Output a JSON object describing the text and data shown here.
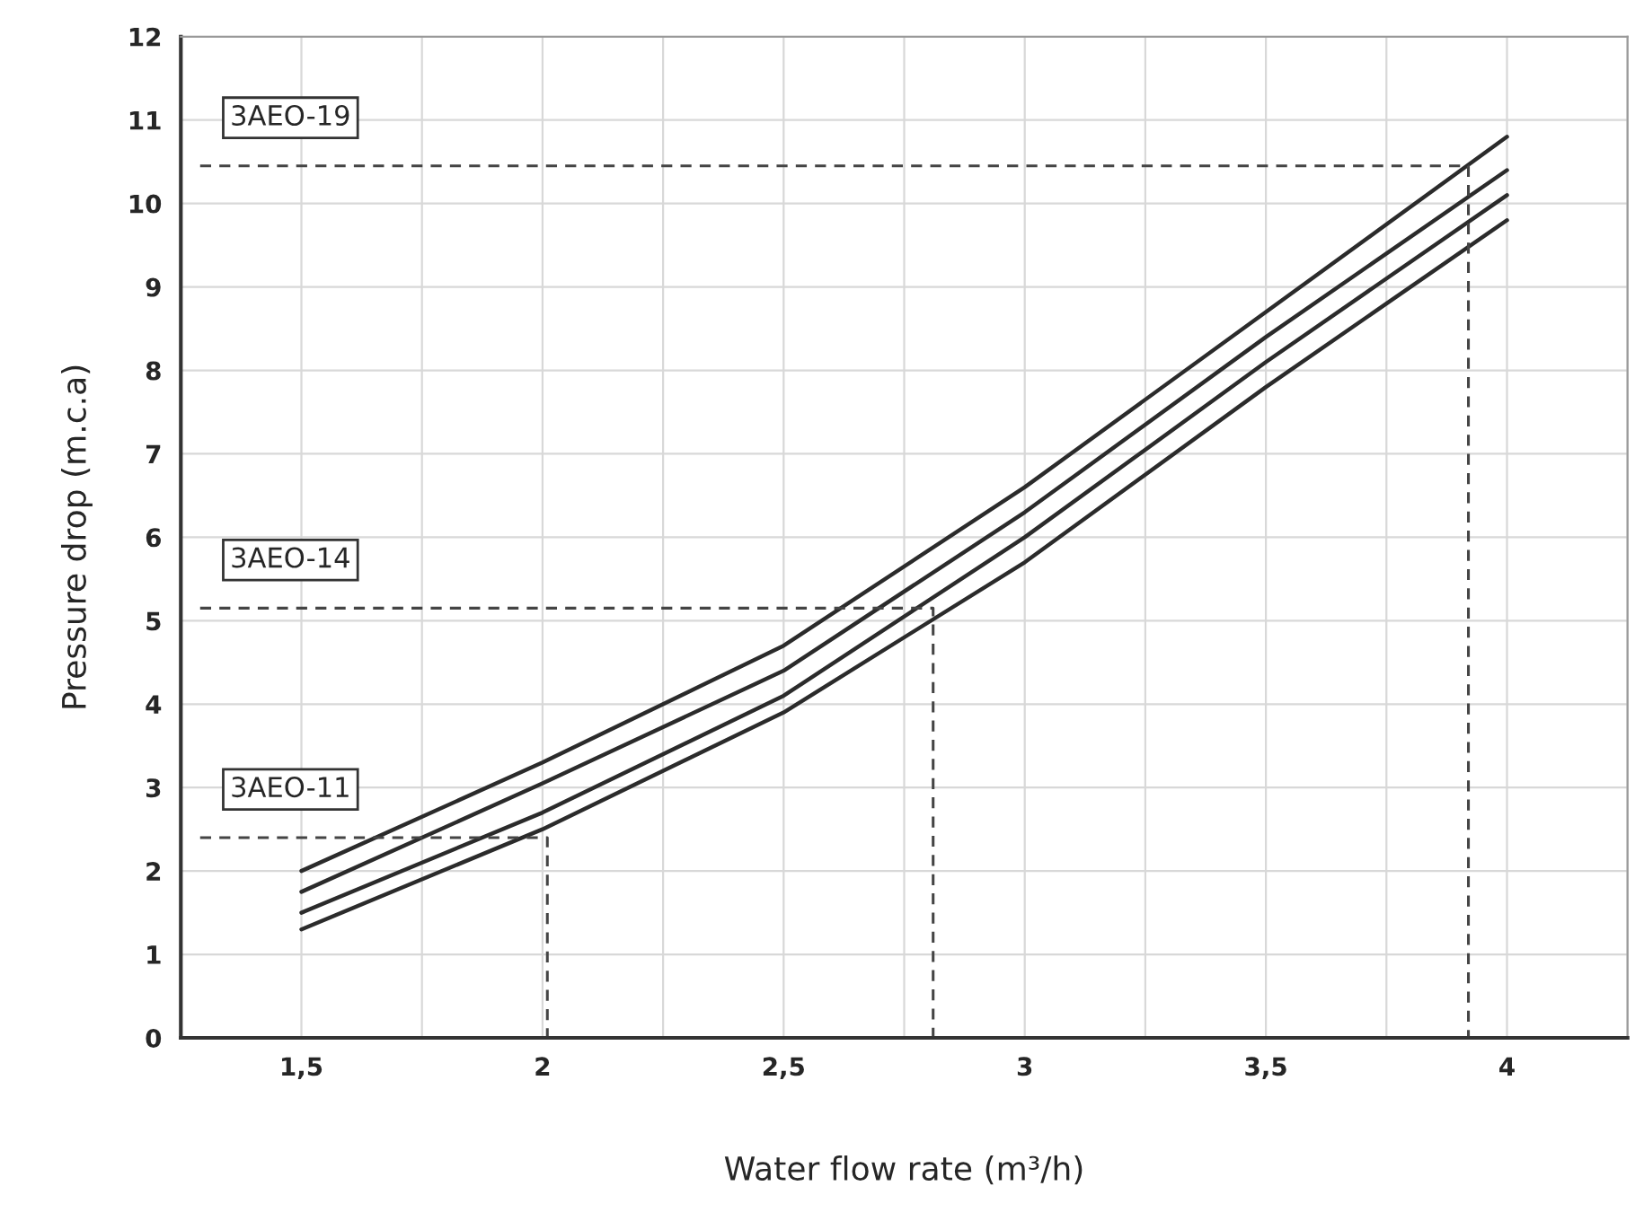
{
  "chart_data": {
    "type": "line",
    "xlabel": "Water flow rate (m³/h)",
    "ylabel": "Pressure drop (m.c.a)",
    "x": [
      1.5,
      2,
      2.5,
      3,
      3.5,
      4
    ],
    "series": [
      {
        "color": "#2b2b2b",
        "values": [
          2.0,
          3.3,
          4.7,
          6.6,
          8.7,
          10.8
        ]
      },
      {
        "color": "#2b2b2b",
        "values": [
          1.75,
          3.05,
          4.4,
          6.3,
          8.4,
          10.4
        ]
      },
      {
        "color": "#2b2b2b",
        "values": [
          1.5,
          2.7,
          4.1,
          6.0,
          8.1,
          10.1
        ]
      },
      {
        "color": "#2b2b2b",
        "values": [
          1.3,
          2.5,
          3.9,
          5.7,
          7.8,
          9.8
        ]
      },
      {
        "name": "3AEO-11",
        "color": "#444444",
        "line_style": "dashed",
        "x": [
          1.29,
          2.01,
          2.01
        ],
        "values": [
          2.4,
          2.4,
          0
        ]
      },
      {
        "name": "3AEO-14",
        "color": "#444444",
        "line_style": "dashed",
        "x": [
          1.29,
          2.81,
          2.81
        ],
        "values": [
          5.15,
          5.15,
          0
        ]
      },
      {
        "name": "3AEO-19",
        "color": "#444444",
        "line_style": "dashed",
        "x": [
          1.29,
          3.92,
          3.92
        ],
        "values": [
          10.45,
          10.45,
          0
        ]
      }
    ],
    "xlim": [
      1.25,
      4.25
    ],
    "xticks": [
      {
        "value": 1.25,
        "label": null
      },
      {
        "value": 1.5,
        "label": "1,5"
      },
      {
        "value": 1.75,
        "label": null
      },
      2,
      {
        "value": 2.25,
        "label": null
      },
      {
        "value": 2.5,
        "label": "2,5"
      },
      {
        "value": 2.75,
        "label": null
      },
      3,
      {
        "value": 3.25,
        "label": null
      },
      {
        "value": 3.5,
        "label": "3,5"
      },
      {
        "value": 3.75,
        "label": null
      },
      4,
      {
        "value": 4.25,
        "label": null
      }
    ],
    "ylim": [
      0,
      12
    ],
    "yticks": [
      0,
      1,
      2,
      3,
      4,
      5,
      6,
      7,
      8,
      9,
      10,
      11,
      12
    ],
    "grid": true,
    "line_style": "solid",
    "marker": "none"
  }
}
